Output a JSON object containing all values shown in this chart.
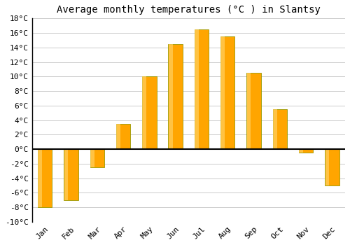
{
  "months": [
    "Jan",
    "Feb",
    "Mar",
    "Apr",
    "May",
    "Jun",
    "Jul",
    "Aug",
    "Sep",
    "Oct",
    "Nov",
    "Dec"
  ],
  "values": [
    -8,
    -7,
    -2.5,
    3.5,
    10,
    14.5,
    16.5,
    15.5,
    10.5,
    5.5,
    -0.5,
    -5
  ],
  "bar_color": "#FFA500",
  "bar_edge_color": "#999900",
  "bar_highlight_color": "#FFD060",
  "title": "Average monthly temperatures (°C ) in Slantsy",
  "ylim": [
    -10,
    18
  ],
  "yticks": [
    -10,
    -8,
    -6,
    -4,
    -2,
    0,
    2,
    4,
    6,
    8,
    10,
    12,
    14,
    16,
    18
  ],
  "ytick_labels": [
    "-10°C",
    "-8°C",
    "-6°C",
    "-4°C",
    "-2°C",
    "0°C",
    "2°C",
    "4°C",
    "6°C",
    "8°C",
    "10°C",
    "12°C",
    "14°C",
    "16°C",
    "18°C"
  ],
  "figure_bg": "#ffffff",
  "axes_bg": "#ffffff",
  "grid_color": "#cccccc",
  "zero_line_color": "#000000",
  "title_fontsize": 10,
  "tick_fontsize": 8,
  "font_family": "monospace",
  "bar_width": 0.55
}
